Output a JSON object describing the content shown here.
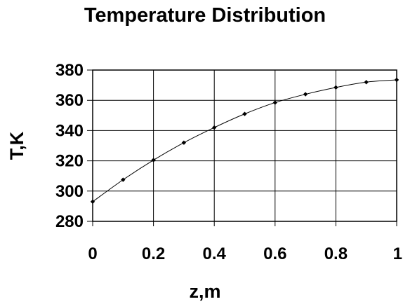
{
  "chart_data": {
    "type": "line",
    "title": "Temperature Distribution",
    "xlabel": "z,m",
    "ylabel": "T,K",
    "x": [
      0,
      0.1,
      0.2,
      0.3,
      0.4,
      0.5,
      0.6,
      0.7,
      0.8,
      0.9,
      1.0
    ],
    "series": [
      {
        "name": "",
        "values": [
          293,
          307.5,
          320.5,
          332,
          342,
          351,
          358.5,
          364,
          368.5,
          372,
          373.5
        ]
      }
    ],
    "xlim": [
      0,
      1
    ],
    "ylim": [
      280,
      380
    ],
    "xticks": [
      0,
      0.2,
      0.4,
      0.6,
      0.8,
      1
    ],
    "xtick_labels": [
      "0",
      "0.2",
      "0.4",
      "0.6",
      "0.8",
      "1"
    ],
    "yticks": [
      280,
      300,
      320,
      340,
      360,
      380
    ],
    "ytick_labels": [
      "280",
      "300",
      "320",
      "340",
      "360",
      "380"
    ],
    "grid": true,
    "legend": "none",
    "colors": {
      "line": "#000000",
      "marker": "#000000",
      "background": "#ffffff"
    }
  }
}
